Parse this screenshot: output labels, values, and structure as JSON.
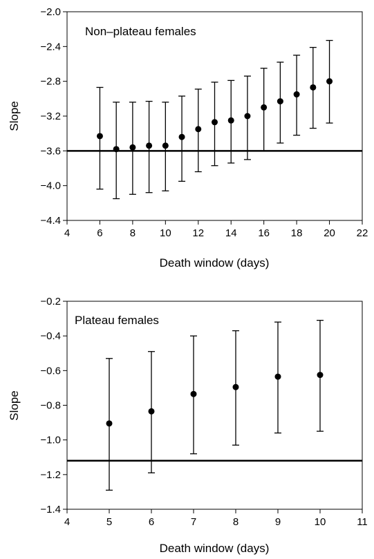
{
  "chart_data": [
    {
      "type": "scatter",
      "title": "Non–plateau females",
      "xlabel": "Death window (days)",
      "ylabel": "Slope",
      "xlim": [
        4,
        22
      ],
      "ylim": [
        -4.4,
        -2.0
      ],
      "xticks": [
        4,
        6,
        8,
        10,
        12,
        14,
        16,
        18,
        20,
        22
      ],
      "xtick_labels": [
        "4",
        "6",
        "8",
        "10",
        "12",
        "14",
        "16",
        "18",
        "20",
        "22"
      ],
      "yticks": [
        -2.0,
        -2.4,
        -2.8,
        -3.2,
        -3.6,
        -4.0,
        -4.4
      ],
      "ytick_labels": [
        "−2.0",
        "−2.4",
        "−2.8",
        "−3.2",
        "−3.6",
        "−4.0",
        "−4.4"
      ],
      "reference_line": -3.6,
      "grid": false,
      "series": [
        {
          "x": [
            6,
            7,
            8,
            9,
            10,
            11,
            12,
            13,
            14,
            15,
            16,
            17,
            18,
            19,
            20
          ],
          "y": [
            -3.43,
            -3.58,
            -3.56,
            -3.54,
            -3.54,
            -3.44,
            -3.35,
            -3.27,
            -3.25,
            -3.2,
            -3.1,
            -3.03,
            -2.95,
            -2.87,
            -2.8
          ],
          "lower": [
            -4.04,
            -4.15,
            -4.1,
            -4.08,
            -4.06,
            -3.95,
            -3.84,
            -3.77,
            -3.74,
            -3.7,
            -3.6,
            -3.51,
            -3.42,
            -3.34,
            -3.28
          ],
          "upper": [
            -2.87,
            -3.04,
            -3.04,
            -3.03,
            -3.04,
            -2.97,
            -2.89,
            -2.81,
            -2.79,
            -2.74,
            -2.65,
            -2.58,
            -2.5,
            -2.41,
            -2.33
          ]
        }
      ]
    },
    {
      "type": "scatter",
      "title": "Plateau females",
      "xlabel": "Death window (days)",
      "ylabel": "Slope",
      "xlim": [
        4,
        11
      ],
      "ylim": [
        -1.4,
        -0.2
      ],
      "xticks": [
        4,
        5,
        6,
        7,
        8,
        9,
        10,
        11
      ],
      "xtick_labels": [
        "4",
        "5",
        "6",
        "7",
        "8",
        "9",
        "10",
        "11"
      ],
      "yticks": [
        -0.2,
        -0.4,
        -0.6,
        -0.8,
        -1.0,
        -1.2,
        -1.4
      ],
      "ytick_labels": [
        "−0.2",
        "−0.4",
        "−0.6",
        "−0.8",
        "−1.0",
        "−1.2",
        "−1.4"
      ],
      "reference_line": -1.12,
      "grid": false,
      "series": [
        {
          "x": [
            5,
            6,
            7,
            8,
            9,
            10
          ],
          "y": [
            -0.905,
            -0.835,
            -0.735,
            -0.695,
            -0.635,
            -0.625
          ],
          "lower": [
            -1.29,
            -1.19,
            -1.08,
            -1.03,
            -0.96,
            -0.95
          ],
          "upper": [
            -0.53,
            -0.49,
            -0.4,
            -0.37,
            -0.32,
            -0.31
          ]
        }
      ]
    }
  ]
}
